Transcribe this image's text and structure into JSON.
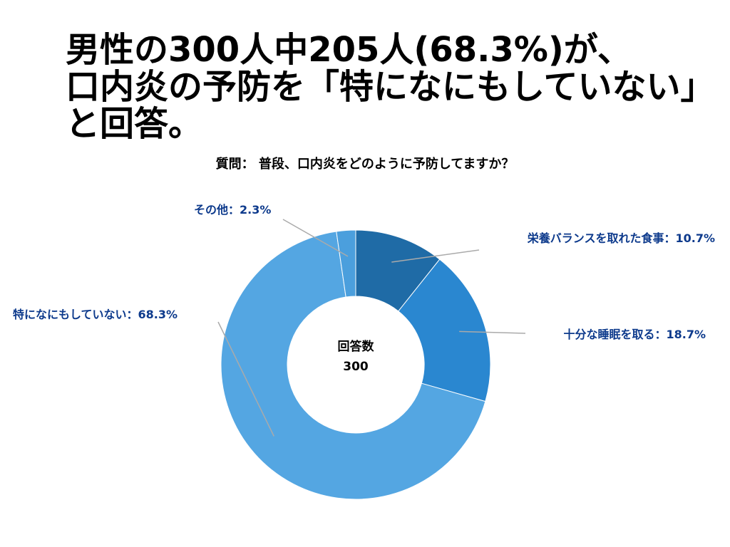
{
  "headline": {
    "line1": "男性の300人中205人(68.3%)が、",
    "line2": "口内炎の予防を「特になにもしていない」",
    "line3": "と回答。"
  },
  "chart_data": {
    "type": "pie",
    "title": "質問： 普段、口内炎をどのように予防してますか？",
    "center_label": "回答数",
    "center_value": "300",
    "label_color": "#0d3a8c",
    "leader_color": "#aaaaaa",
    "slices": [
      {
        "label": "栄養バランスを取れた食事：10.7%",
        "value": 10.7,
        "color": "#1f6ba6"
      },
      {
        "label": "十分な睡眠を取る：18.7%",
        "value": 18.7,
        "color": "#2a87d0"
      },
      {
        "label": "特になにもしていない：68.3%",
        "value": 68.3,
        "color": "#54a6e2"
      },
      {
        "label": "その他：2.3%",
        "value": 2.3,
        "color": "#4b9fdd"
      }
    ]
  }
}
